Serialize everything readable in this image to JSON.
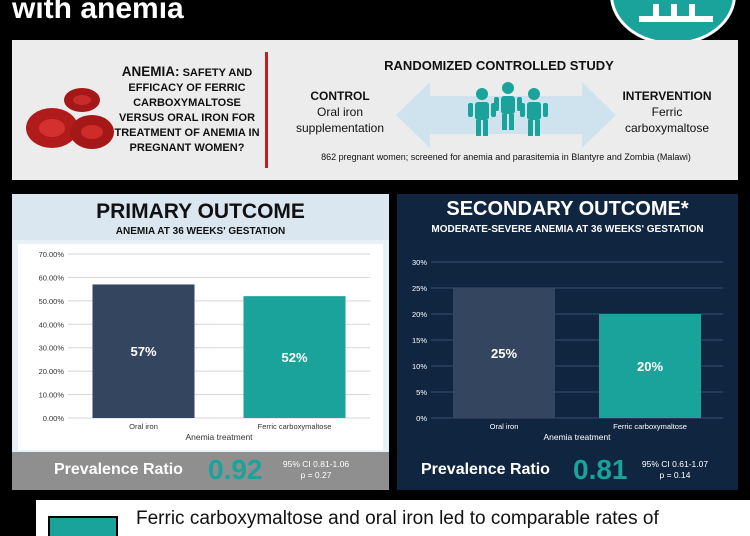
{
  "header": {
    "title": "with anemia"
  },
  "study": {
    "anemia_word": "ANEMIA:",
    "title_rest": "SAFETY AND EFFICACY OF FERRIC CARBOXYMALTOSE VERSUS ORAL IRON FOR TREATMENT OF ANEMIA IN PREGNANT WOMEN?",
    "rct_title": "RANDOMIZED CONTROLLED STUDY",
    "control_label": "CONTROL",
    "control_line1": "Oral iron",
    "control_line2": "supplementation",
    "intervention_label": "INTERVENTION",
    "intervention_line1": "Ferric",
    "intervention_line2": "carboxymaltose",
    "note": "862 pregnant women; screened for anemia and parasitemia in Blantyre and Zombia (Malawi)"
  },
  "primary": {
    "title": "PRIMARY OUTCOME",
    "subtitle": "ANEMIA AT 36 WEEKS' GESTATION",
    "pr_label": "Prevalence Ratio",
    "pr_value": "0.92",
    "ci": "95% CI 0.81-1.06",
    "p": "p = 0.27"
  },
  "secondary": {
    "title": "SECONDARY OUTCOME*",
    "subtitle": "MODERATE-SEVERE ANEMIA AT 36 WEEKS' GESTATION",
    "pr_label": "Prevalence Ratio",
    "pr_value": "0.81",
    "ci": "95% CI 0.61-1.07",
    "p": "p = 0.14"
  },
  "bottom": {
    "text": "Ferric carboxymaltose and oral iron led to comparable rates of"
  },
  "colors": {
    "teal": "#1aa39a",
    "navy": "#34465f",
    "red": "#c0201f",
    "dark_panel": "#102540"
  },
  "chart_data": [
    {
      "type": "bar",
      "categories": [
        "Oral iron",
        "Ferric carboxymaltose"
      ],
      "values": [
        57,
        52
      ],
      "data_labels": [
        "57%",
        "52%"
      ],
      "xlabel": "Anemia treatment",
      "ylim": [
        0,
        70
      ],
      "yticks": [
        "0.00%",
        "10.00%",
        "20.00%",
        "30.00%",
        "40.00%",
        "50.00%",
        "60.00%",
        "70.00%"
      ],
      "grid": true
    },
    {
      "type": "bar",
      "categories": [
        "Oral iron",
        "Ferric carboxymaltose"
      ],
      "values": [
        25,
        20
      ],
      "data_labels": [
        "25%",
        "20%"
      ],
      "xlabel": "Anemia treatment",
      "ylim": [
        0,
        30
      ],
      "yticks": [
        "0%",
        "5%",
        "10%",
        "15%",
        "20%",
        "25%",
        "30%"
      ],
      "grid": true
    }
  ]
}
